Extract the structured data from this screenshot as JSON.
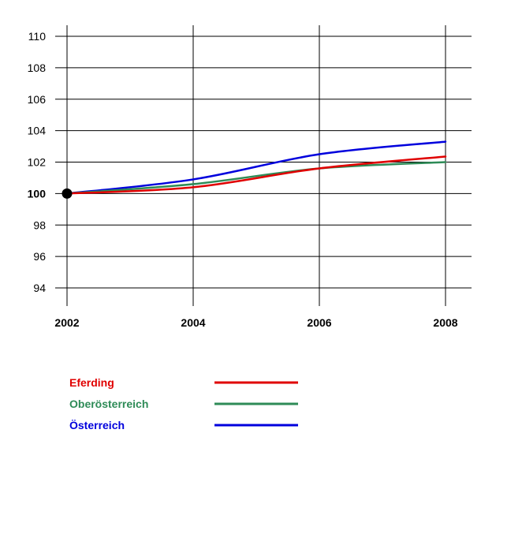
{
  "chart_data": {
    "type": "line",
    "title": "",
    "xlabel": "",
    "ylabel": "",
    "x": [
      2002,
      2004,
      2006,
      2008
    ],
    "xticks": [
      "2002",
      "2004",
      "2006",
      "2008"
    ],
    "xlim": [
      2002,
      2008
    ],
    "ylim": [
      93,
      111
    ],
    "yticks": [
      "94",
      "96",
      "98",
      "100",
      "102",
      "104",
      "106",
      "108",
      "110"
    ],
    "grid": true,
    "legend_position": "bottom",
    "base_marker": {
      "x": 2002,
      "y": 100
    },
    "series": [
      {
        "name": "Eferding",
        "color": "#e00000",
        "values": [
          100.0,
          100.4,
          101.6,
          102.35
        ]
      },
      {
        "name": "Oberösterreich",
        "color": "#2e8b57",
        "values": [
          100.0,
          100.6,
          101.6,
          102.0
        ]
      },
      {
        "name": "Österreich",
        "color": "#0000dd",
        "values": [
          100.0,
          100.9,
          102.5,
          103.3
        ]
      }
    ]
  }
}
